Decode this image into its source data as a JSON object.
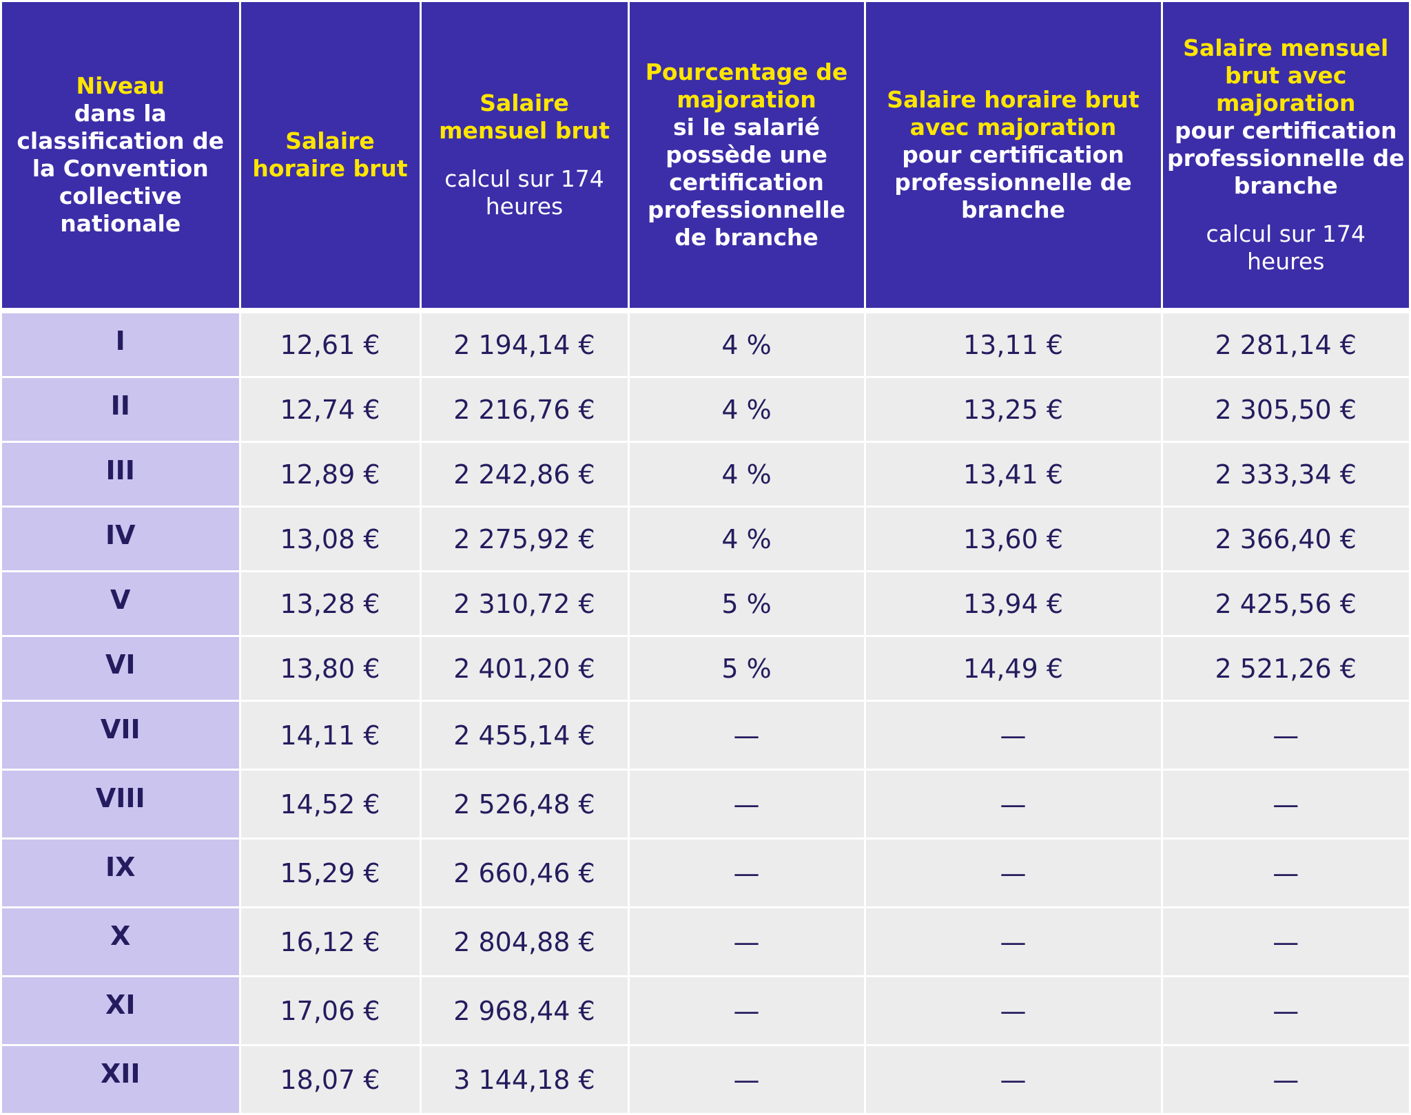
{
  "headers": [
    {
      "highlight": "Niveau",
      "rest": "dans la classification de la Convention collective nationale",
      "note": ""
    },
    {
      "highlight": "Salaire horaire brut",
      "rest": "",
      "note": ""
    },
    {
      "highlight": "Salaire mensuel brut",
      "rest": "",
      "note": "calcul sur 174 heures"
    },
    {
      "highlight": "Pourcentage de majoration",
      "rest": "si le salarié possède une certification professionnelle de branche",
      "note": ""
    },
    {
      "highlight": "Salaire horaire brut avec majoration",
      "rest": "pour certification professionnelle de branche",
      "note": ""
    },
    {
      "highlight": "Salaire mensuel brut avec majoration",
      "rest": "pour certification professionnelle de branche",
      "note": "calcul sur 174 heures"
    }
  ],
  "rows": [
    [
      "I",
      "12,61 €",
      "2 194,14 €",
      "4 %",
      "13,11 €",
      "2 281,14 €"
    ],
    [
      "II",
      "12,74 €",
      "2 216,76 €",
      "4 %",
      "13,25 €",
      "2 305,50 €"
    ],
    [
      "III",
      "12,89 €",
      "2 242,86 €",
      "4 %",
      "13,41 €",
      "2 333,34 €"
    ],
    [
      "IV",
      "13,08 €",
      "2 275,92 €",
      "4 %",
      "13,60 €",
      "2 366,40 €"
    ],
    [
      "V",
      "13,28 €",
      "2 310,72 €",
      "5 %",
      "13,94 €",
      "2 425,56 €"
    ],
    [
      "VI",
      "13,80 €",
      "2 401,20 €",
      "5 %",
      "14,49 €",
      "2 521,26 €"
    ],
    [
      "VII",
      "14,11 €",
      "2 455,14 €",
      "—",
      "—",
      "—"
    ],
    [
      "VIII",
      "14,52 €",
      "2 526,48 €",
      "—",
      "—",
      "—"
    ],
    [
      "IX",
      "15,29 €",
      "2 660,46 €",
      "—",
      "—",
      "—"
    ],
    [
      "X",
      "16,12 €",
      "2 804,88 €",
      "—",
      "—",
      "—"
    ],
    [
      "XI",
      "17,06 €",
      "2 968,44 €",
      "—",
      "—",
      "—"
    ],
    [
      "XII",
      "18,07 €",
      "3 144,18 €",
      "—",
      "—",
      "—"
    ]
  ],
  "colors": {
    "header_bg": "#3c2ea8",
    "highlight": "#ffe600",
    "level_bg": "#cac4ef",
    "cell_bg": "#ececec",
    "text": "#241c5e"
  }
}
